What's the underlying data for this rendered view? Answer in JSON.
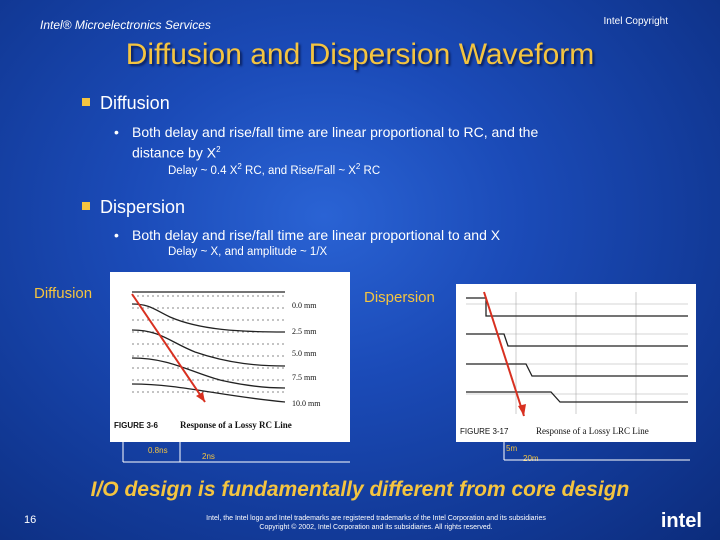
{
  "header": {
    "left_text": "Intel® Microelectronics Services",
    "right_text": "Intel Copyright"
  },
  "title": "Diffusion and Dispersion Waveform",
  "bullets": {
    "diffusion": {
      "heading": "Diffusion",
      "sub_line1": "Both delay and rise/fall time are linear proportional to RC, and the",
      "sub_line2": "distance by X",
      "sup": "2",
      "formula_a": "Delay ~ 0.4 X",
      "formula_sup1": "2",
      "formula_b": " RC, and Rise/Fall ~ X",
      "formula_sup2": "2",
      "formula_c": " RC"
    },
    "dispersion": {
      "heading": "Dispersion",
      "sub_line": "Both delay and rise/fall time are linear proportional to and X",
      "formula": "Delay ~ X, and amplitude ~ 1/X"
    }
  },
  "figures": {
    "diffusion": {
      "label": "Diffusion",
      "caption_fig": "FIGURE 3-6",
      "caption_text": "Response of a Lossy RC Line",
      "distances": [
        "0.0 mm",
        "2.5 mm",
        "5.0 mm",
        "7.5 mm",
        "10.0 mm"
      ],
      "scale_left": "0.8ns",
      "scale_right": "2ns"
    },
    "dispersion": {
      "label": "Dispersion",
      "caption_fig": "FIGURE 3-17",
      "caption_text": "Response of a Lossy LRC Line",
      "scale_left": "5m",
      "scale_right": "20m"
    }
  },
  "bottom_statement": "I/O design is fundamentally different from core design",
  "footer": {
    "page_number": "16",
    "line1": "Intel, the Intel logo and Intel trademarks are registered trademarks of the Intel Corporation and its subsidiaries",
    "line2": "Copyright © 2002, Intel Corporation and its subsidiaries. All rights reserved."
  },
  "logo_text": "intel"
}
